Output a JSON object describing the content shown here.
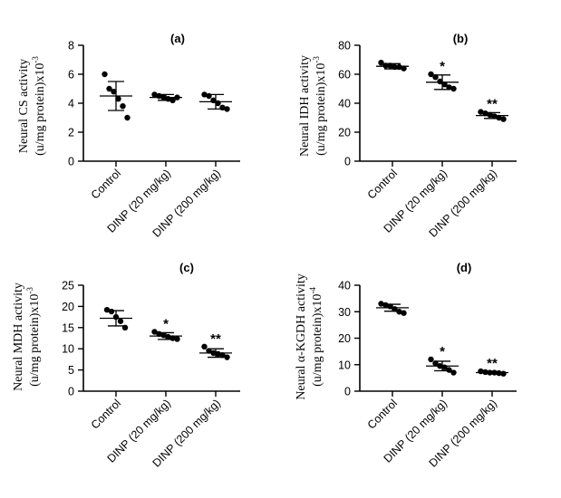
{
  "chart_data": [
    {
      "type": "scatter",
      "title": "(a)",
      "ylabel_line1": "Neural CS activity",
      "ylabel_line2": "(u/mg protein)x10",
      "ylabel_exp": "-3",
      "categories": [
        "Control",
        "DINP (20 mg/kg)",
        "DINP (200 mg/kg)"
      ],
      "ylim": [
        0,
        8
      ],
      "yticks": [
        0,
        2,
        4,
        6,
        8
      ],
      "groups": [
        {
          "points": [
            6.0,
            5.0,
            4.8,
            4.3,
            3.8,
            3.0
          ],
          "mean": 4.5,
          "sd": 1.0,
          "sig": ""
        },
        {
          "points": [
            4.6,
            4.5,
            4.4,
            4.3,
            4.2,
            4.4
          ],
          "mean": 4.4,
          "sd": 0.2,
          "sig": ""
        },
        {
          "points": [
            4.6,
            4.5,
            4.2,
            4.0,
            3.7,
            3.6
          ],
          "mean": 4.1,
          "sd": 0.5,
          "sig": ""
        }
      ]
    },
    {
      "type": "scatter",
      "title": "(b)",
      "ylabel_line1": "Neural IDH activity",
      "ylabel_line2": "(u/mg protein)x10",
      "ylabel_exp": "-3",
      "categories": [
        "Control",
        "DINP (20 mg/kg)",
        "DINP (200 mg/kg)"
      ],
      "ylim": [
        0,
        80
      ],
      "yticks": [
        0,
        20,
        40,
        60,
        80
      ],
      "groups": [
        {
          "points": [
            68,
            66,
            66,
            65,
            65,
            64
          ],
          "mean": 65.5,
          "sd": 1.8,
          "sig": ""
        },
        {
          "points": [
            60,
            58,
            55,
            53,
            51,
            50
          ],
          "mean": 54.5,
          "sd": 5.0,
          "sig": "*"
        },
        {
          "points": [
            34,
            33,
            32,
            31,
            30,
            29
          ],
          "mean": 31.5,
          "sd": 2.0,
          "sig": "**"
        }
      ]
    },
    {
      "type": "scatter",
      "title": "(c)",
      "ylabel_line1": "Neural MDH activity",
      "ylabel_line2": "(u/mg protein)x10",
      "ylabel_exp": "-3",
      "categories": [
        "Control",
        "DINP (20 mg/kg)",
        "DINP (200 mg/kg)"
      ],
      "ylim": [
        0,
        25
      ],
      "yticks": [
        0,
        5,
        10,
        15,
        20,
        25
      ],
      "groups": [
        {
          "points": [
            19.2,
            18.8,
            17.5,
            16.5,
            15.0
          ],
          "mean": 17.2,
          "sd": 1.8,
          "sig": ""
        },
        {
          "points": [
            14.0,
            13.5,
            13.2,
            12.8,
            12.5,
            12.3
          ],
          "mean": 13.0,
          "sd": 0.8,
          "sig": "*"
        },
        {
          "points": [
            10.5,
            9.5,
            9.0,
            8.8,
            8.5,
            8.0
          ],
          "mean": 9.0,
          "sd": 1.0,
          "sig": "**"
        }
      ]
    },
    {
      "type": "scatter",
      "title": "(d)",
      "ylabel_line1": "Neural α-KGDH activity",
      "ylabel_line2": "(u/mg protein)x10",
      "ylabel_exp": "-4",
      "categories": [
        "Control",
        "DINP (20 mg/kg)",
        "DINP (200 mg/kg)"
      ],
      "ylim": [
        0,
        40
      ],
      "yticks": [
        0,
        10,
        20,
        30,
        40
      ],
      "groups": [
        {
          "points": [
            33,
            32.5,
            32,
            31,
            30,
            29.5
          ],
          "mean": 31.5,
          "sd": 1.3,
          "sig": ""
        },
        {
          "points": [
            12,
            10.5,
            9.5,
            9.0,
            8.0,
            7.0
          ],
          "mean": 9.5,
          "sd": 1.8,
          "sig": "*"
        },
        {
          "points": [
            7.5,
            7.2,
            7.0,
            7.0,
            6.8,
            6.6
          ],
          "mean": 7.0,
          "sd": 0.4,
          "sig": "**"
        }
      ]
    }
  ]
}
